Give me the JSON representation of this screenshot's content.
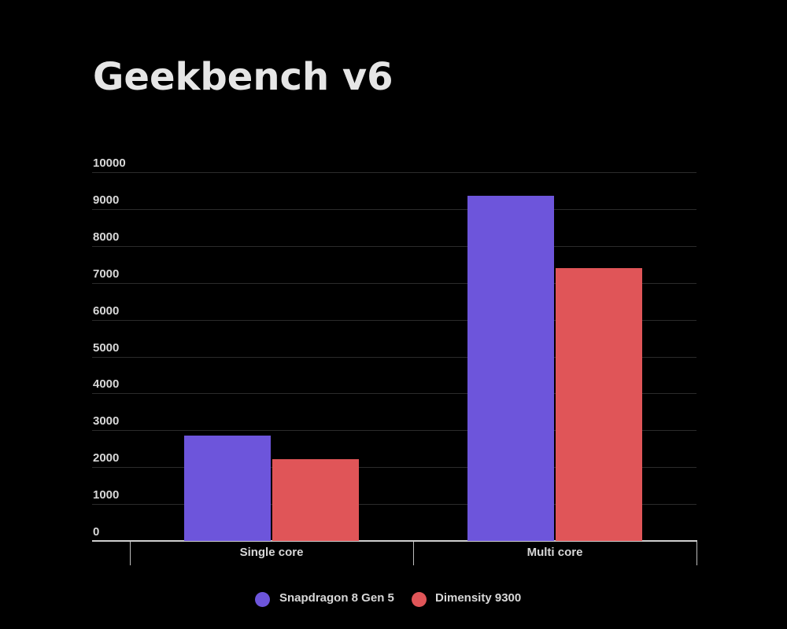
{
  "chart_data": {
    "type": "bar",
    "title": "Geekbench v6",
    "xlabel": "",
    "ylabel": "",
    "categories": [
      "Single core",
      "Multi core"
    ],
    "series": [
      {
        "name": "Snapdragon 8 Gen 5",
        "color": "#6d55db",
        "values": [
          2850,
          9350
        ]
      },
      {
        "name": "Dimensity 9300",
        "color": "#e05558",
        "values": [
          2210,
          7390
        ]
      }
    ],
    "ylim": [
      0,
      10000
    ],
    "yticks": [
      0,
      1000,
      2000,
      3000,
      4000,
      5000,
      6000,
      7000,
      8000,
      9000,
      10000
    ],
    "grid": true,
    "legend_position": "bottom"
  },
  "colors": {
    "background": "#000000",
    "gridline": "#2b2b2b",
    "text": "#d8d8d8"
  }
}
